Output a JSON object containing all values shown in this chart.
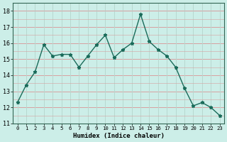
{
  "x": [
    0,
    1,
    2,
    3,
    4,
    5,
    6,
    7,
    8,
    9,
    10,
    11,
    12,
    13,
    14,
    15,
    16,
    17,
    18,
    19,
    20,
    21,
    22,
    23
  ],
  "y": [
    12.3,
    13.4,
    14.2,
    15.9,
    15.2,
    15.3,
    15.3,
    14.5,
    15.2,
    15.9,
    16.5,
    15.1,
    15.6,
    16.0,
    17.8,
    16.1,
    15.6,
    15.2,
    14.5,
    13.2,
    12.1,
    12.3,
    12.0,
    11.5
  ],
  "xlabel": "Humidex (Indice chaleur)",
  "ylim": [
    11,
    18.5
  ],
  "xlim": [
    -0.5,
    23.5
  ],
  "yticks": [
    11,
    12,
    13,
    14,
    15,
    16,
    17,
    18
  ],
  "xticks": [
    0,
    1,
    2,
    3,
    4,
    5,
    6,
    7,
    8,
    9,
    10,
    11,
    12,
    13,
    14,
    15,
    16,
    17,
    18,
    19,
    20,
    21,
    22,
    23
  ],
  "line_color": "#1a6b5a",
  "marker_color": "#1a6b5a",
  "bg_color": "#cceee8",
  "hgrid_color": "#d8a0a0",
  "vgrid_color": "#b8d8d0"
}
